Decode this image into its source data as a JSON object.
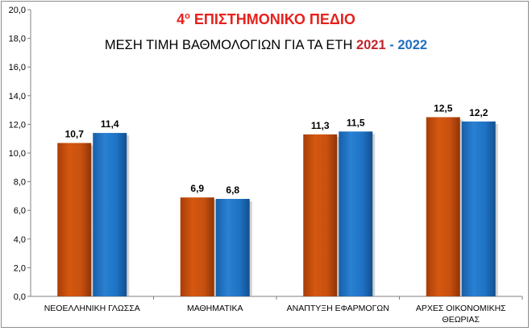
{
  "chart_data": {
    "type": "bar",
    "title": {
      "prefix": "4",
      "superscript": "ο",
      "text": " ΕΠΙΣΤΗΜΟΝΙΚΟ ΠΕΔΙΟ"
    },
    "subtitle": {
      "text": "ΜΕΣΗ ΤΙΜΗ ΒΑΘΜΟΛΟΓΙΩΝ ΓΙΑ ΤΑ ΕΤΗ ",
      "year1": "2021",
      "separator": " - ",
      "year2": "2022"
    },
    "categories": [
      [
        "ΝΕΟΕΛΛΗΝΙΚΗ ΓΛΩΣΣΑ"
      ],
      [
        "ΜΑΘΗΜΑΤΙΚΑ"
      ],
      [
        "ΑΝΑΠΤΥΞΗ ΕΦΑΡΜΟΓΩΝ"
      ],
      [
        "ΑΡΧΕΣ ΟΙΚΟΝΟΜΙΚΗΣ",
        "ΘΕΩΡΙΑΣ"
      ]
    ],
    "series": [
      {
        "name": "2021",
        "color": "#c8500f",
        "values": [
          10.7,
          6.9,
          11.3,
          12.5
        ],
        "labels": [
          "10,7",
          "6,9",
          "11,3",
          "12,5"
        ]
      },
      {
        "name": "2022",
        "color": "#1f72c4",
        "values": [
          11.4,
          6.8,
          11.5,
          12.2
        ],
        "labels": [
          "11,4",
          "6,8",
          "11,5",
          "12,2"
        ]
      }
    ],
    "ylim": [
      0,
      20
    ],
    "yticks": [
      0,
      2,
      4,
      6,
      8,
      10,
      12,
      14,
      16,
      18,
      20
    ],
    "ytick_labels": [
      "0,0",
      "2,0",
      "4,0",
      "6,0",
      "8,0",
      "10,0",
      "12,0",
      "14,0",
      "16,0",
      "18,0",
      "20,0"
    ],
    "grid": false,
    "legend": "none"
  }
}
